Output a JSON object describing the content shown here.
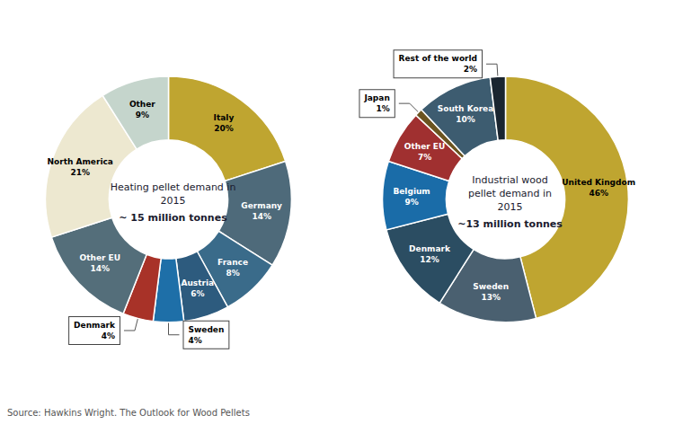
{
  "chart_data": [
    {
      "type": "pie",
      "title": "Heating pellet demand in\n2015",
      "subtitle": "~ 15 million tonnes",
      "categories": [
        "Italy",
        "Germany",
        "France",
        "Austria",
        "Sweden",
        "Denmark",
        "Other EU",
        "North America",
        "Other"
      ],
      "values": [
        20,
        14,
        8,
        6,
        4,
        4,
        14,
        21,
        9
      ],
      "value_labels": [
        "20%",
        "14%",
        "8%",
        "6%",
        "4%",
        "4%",
        "14%",
        "21%",
        "9%"
      ],
      "colors": [
        "#BFA530",
        "#4E6A7A",
        "#3A6B8A",
        "#2D5B7E",
        "#1E6FA8",
        "#A83228",
        "#546E7A",
        "#EDE8D0",
        "#C5D5CC"
      ],
      "data_labels": true,
      "legend": false,
      "annotations": [
        "Source: Hawkins Wright. The Outlook for Wood Pellets"
      ]
    },
    {
      "type": "pie",
      "title": "Industrial wood\npellet demand in\n2015",
      "subtitle": "~13 million tonnes",
      "categories": [
        "United Kingdom",
        "Sweden",
        "Denmark",
        "Belgium",
        "Other EU",
        "Japan",
        "South Korea",
        "Rest of the world"
      ],
      "values": [
        46,
        13,
        12,
        9,
        7,
        1,
        10,
        2
      ],
      "value_labels": [
        "46%",
        "13%",
        "12%",
        "9%",
        "7%",
        "1%",
        "10%",
        "2%"
      ],
      "colors": [
        "#BFA530",
        "#4A6070",
        "#2B4D62",
        "#1A6CA8",
        "#A03030",
        "#6B5420",
        "#3D5C70",
        "#1A2530"
      ],
      "data_labels": true,
      "legend": false
    }
  ]
}
